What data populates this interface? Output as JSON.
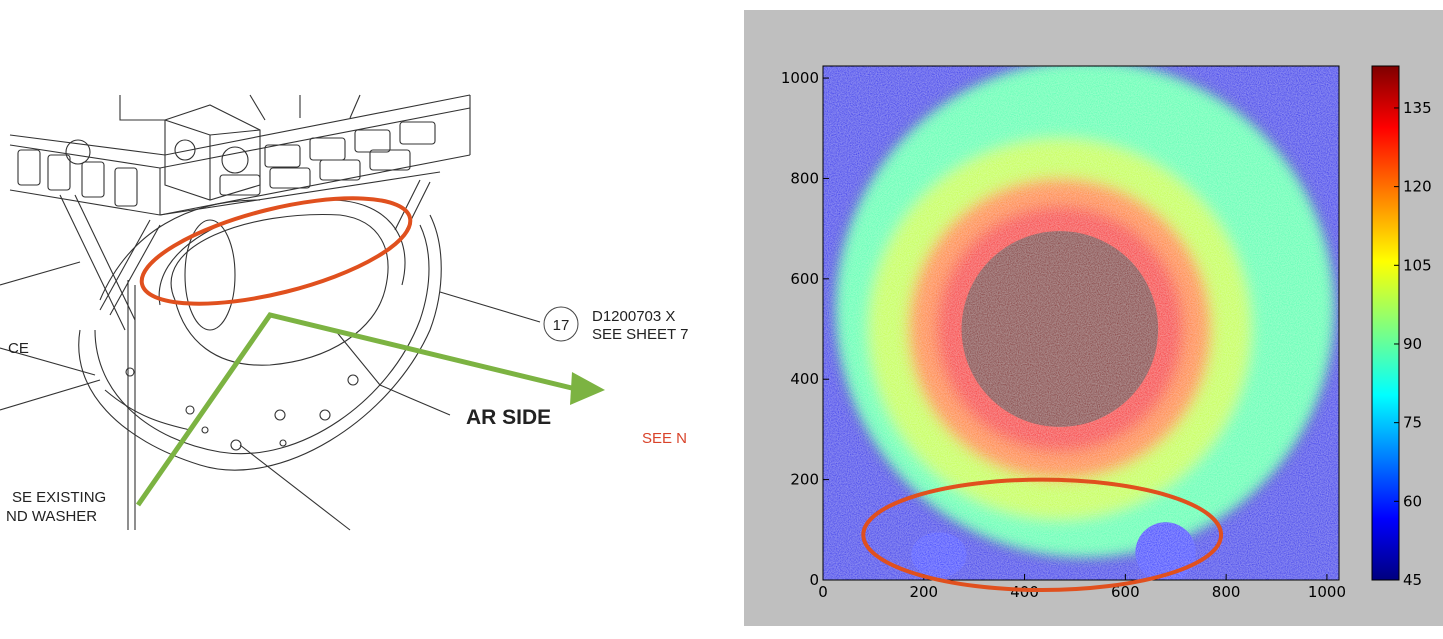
{
  "drawing": {
    "balloon_number": "17",
    "callout_line1": "D1200703 X",
    "callout_line2": "SEE SHEET 7",
    "left_fragment": "CE",
    "note_line1": "SE EXISTING",
    "note_line2": "ND WASHER",
    "side_label": "AR SIDE",
    "see_note": "SEE N",
    "colors": {
      "highlight_ellipse": "#e0501e",
      "arrow": "#7cb342",
      "note_text": "#d9432a"
    }
  },
  "chart_data": {
    "type": "heatmap",
    "title": "",
    "xlabel": "",
    "ylabel": "",
    "xlim": [
      0,
      1024
    ],
    "ylim": [
      0,
      1024
    ],
    "x_ticks": [
      0,
      200,
      400,
      600,
      800,
      1000
    ],
    "y_ticks": [
      0,
      200,
      400,
      600,
      800,
      1000
    ],
    "colorbar": {
      "min": 45,
      "max": 143,
      "ticks": [
        45,
        60,
        75,
        90,
        105,
        120,
        135
      ],
      "colormap": "jet"
    },
    "features": {
      "saturated_core": {
        "center_x": 470,
        "center_y": 500,
        "radius": 195,
        "value": 143
      },
      "hot_ring_outer_radius": 300,
      "bright_disk": {
        "center_x": 520,
        "center_y": 540,
        "radius": 500,
        "value": 88
      },
      "background_value": 55,
      "highlight_ellipse": {
        "center_x": 435,
        "center_y": 90,
        "semi_x": 355,
        "semi_y": 110
      }
    },
    "colors": {
      "panel_background": "#bfbfbf",
      "highlight_ellipse": "#e0501e"
    }
  }
}
